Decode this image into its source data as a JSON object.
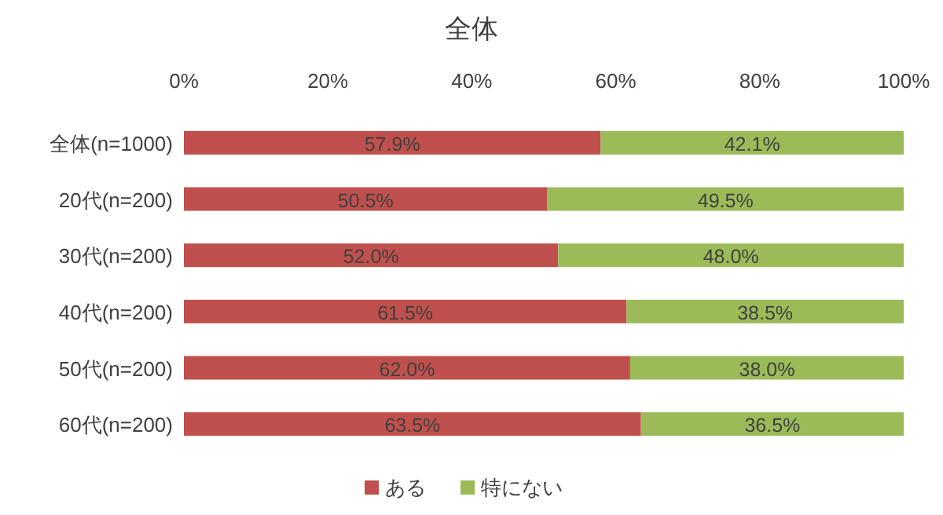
{
  "chart_data": {
    "type": "bar",
    "orientation": "horizontal",
    "stacked": true,
    "title": "全体",
    "categories": [
      "全体(n=1000)",
      "20代(n=200)",
      "30代(n=200)",
      "40代(n=200)",
      "50代(n=200)",
      "60代(n=200)"
    ],
    "series": [
      {
        "name": "ある",
        "color": "#c0504d",
        "values": [
          57.9,
          50.5,
          52.0,
          61.5,
          62.0,
          63.5
        ],
        "value_labels": [
          "57.9%",
          "50.5%",
          "52.0%",
          "61.5%",
          "62.0%",
          "63.5%"
        ]
      },
      {
        "name": "特にない",
        "color": "#9bbb59",
        "values": [
          42.1,
          49.5,
          48.0,
          38.5,
          38.0,
          36.5
        ],
        "value_labels": [
          "42.1%",
          "49.5%",
          "48.0%",
          "38.5%",
          "38.0%",
          "36.5%"
        ]
      }
    ],
    "xlim": [
      0,
      100
    ],
    "xticks": [
      {
        "value": 0,
        "label": "0%"
      },
      {
        "value": 20,
        "label": "20%"
      },
      {
        "value": 40,
        "label": "40%"
      },
      {
        "value": 60,
        "label": "60%"
      },
      {
        "value": 80,
        "label": "80%"
      },
      {
        "value": 100,
        "label": "100%"
      }
    ],
    "grid": false,
    "legend": "bottom"
  }
}
